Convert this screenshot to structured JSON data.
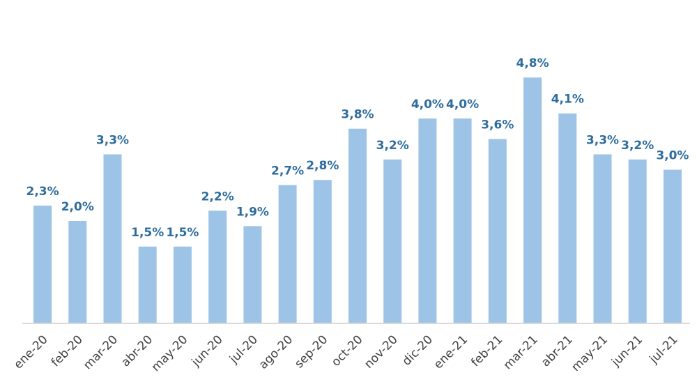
{
  "chart_data": {
    "type": "bar",
    "title": "",
    "xlabel": "",
    "ylabel": "",
    "categories": [
      "ene-20",
      "feb-20",
      "mar-20",
      "abr-20",
      "may-20",
      "jun-20",
      "jul-20",
      "ago-20",
      "sep-20",
      "oct-20",
      "nov-20",
      "dic-20",
      "ene-21",
      "feb-21",
      "mar-21",
      "abr-21",
      "may-21",
      "jun-21",
      "jul-21"
    ],
    "values": [
      2.3,
      2.0,
      3.3,
      1.5,
      1.5,
      2.2,
      1.9,
      2.7,
      2.8,
      3.8,
      3.2,
      4.0,
      4.0,
      3.6,
      4.8,
      4.1,
      3.3,
      3.2,
      3.0
    ],
    "data_labels": [
      "2,3%",
      "2,0%",
      "3,3%",
      "1,5%",
      "1,5%",
      "2,2%",
      "1,9%",
      "2,7%",
      "2,8%",
      "3,8%",
      "3,2%",
      "4,0%",
      "4,0%",
      "3,6%",
      "4,8%",
      "4,1%",
      "3,3%",
      "3,2%",
      "3,0%"
    ],
    "ylim": [
      0,
      5
    ],
    "grid": false,
    "legend": "none",
    "colors": {
      "bar": "#9DC3E6",
      "data_label": "#2E6D9E",
      "tick_label": "#404040",
      "axis": "#D9D9D9"
    }
  }
}
